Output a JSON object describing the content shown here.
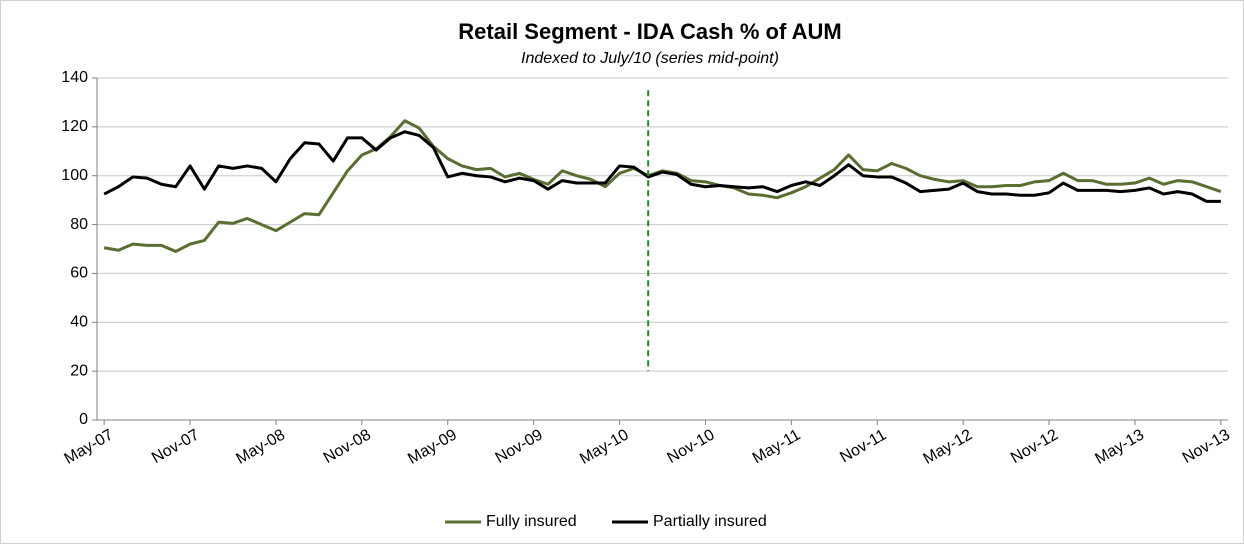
{
  "chart_data": {
    "type": "line",
    "title": "Retail Segment - IDA Cash % of AUM",
    "subtitle": "Indexed to July/10 (series mid-point)",
    "categories": [
      "May-07",
      null,
      null,
      null,
      null,
      null,
      "Nov-07",
      null,
      null,
      null,
      null,
      null,
      "May-08",
      null,
      null,
      null,
      null,
      null,
      "Nov-08",
      null,
      null,
      null,
      null,
      null,
      "May-09",
      null,
      null,
      null,
      null,
      null,
      "Nov-09",
      null,
      null,
      null,
      null,
      null,
      "May-10",
      null,
      null,
      null,
      null,
      null,
      "Nov-10",
      null,
      null,
      null,
      null,
      null,
      "May-11",
      null,
      null,
      null,
      null,
      null,
      "Nov-11",
      null,
      null,
      null,
      null,
      null,
      "May-12",
      null,
      null,
      null,
      null,
      null,
      "Nov-12",
      null,
      null,
      null,
      null,
      null,
      "May-13",
      null,
      null,
      null,
      null,
      null,
      "Nov-13"
    ],
    "series": [
      {
        "name": "Fully insured",
        "color": "#5a6e32",
        "values": [
          70.5,
          69.5,
          72,
          71.5,
          71.5,
          69,
          72,
          73.5,
          81,
          80.5,
          82.5,
          80,
          77.5,
          81,
          84.5,
          84,
          93,
          102,
          108.5,
          111,
          116,
          122.5,
          119.5,
          112,
          107,
          104,
          102.5,
          103,
          99.5,
          101,
          98.5,
          96.5,
          102,
          100,
          98.5,
          95.5,
          101,
          103,
          100,
          102,
          101,
          98,
          97.5,
          96,
          95,
          92.5,
          92,
          91,
          93,
          95.5,
          99,
          102.5,
          108.5,
          102.5,
          102,
          105,
          103,
          100,
          98.5,
          97.5,
          98,
          95.5,
          95.5,
          96,
          96,
          97.5,
          98,
          101,
          98,
          98,
          96.5,
          96.5,
          97,
          99,
          96.5,
          98,
          97.5,
          95.5,
          93.5
        ]
      },
      {
        "name": "Partially insured",
        "color": "#000000",
        "values": [
          92.5,
          95.5,
          99.5,
          99,
          96.5,
          95.5,
          104,
          94.5,
          104,
          103,
          104,
          103,
          97.5,
          107,
          113.5,
          113,
          106,
          115.5,
          115.5,
          110.5,
          115.5,
          118,
          116.5,
          111.5,
          99.5,
          101,
          100,
          99.5,
          97.5,
          99,
          98,
          94.5,
          98,
          97,
          97,
          97,
          104,
          103.5,
          99.5,
          101.5,
          100.5,
          96.5,
          95.5,
          96,
          95.5,
          95,
          95.5,
          93.5,
          96,
          97.5,
          96,
          100,
          104.5,
          100,
          99.5,
          99.5,
          97,
          93.5,
          94,
          94.5,
          97,
          93.5,
          92.5,
          92.5,
          92,
          92,
          93,
          97,
          94,
          94,
          94,
          93.5,
          94,
          95,
          92.5,
          93.5,
          92.5,
          89.5,
          89.5
        ]
      }
    ],
    "ylim": [
      0,
      140
    ],
    "yticks": [
      0,
      20,
      40,
      60,
      80,
      100,
      120,
      140
    ],
    "grid": true,
    "legend": "bottom",
    "vline": {
      "index": 38,
      "ymin": 20,
      "ymax": 135,
      "color": "#1e8c1e",
      "dashed": true
    }
  }
}
